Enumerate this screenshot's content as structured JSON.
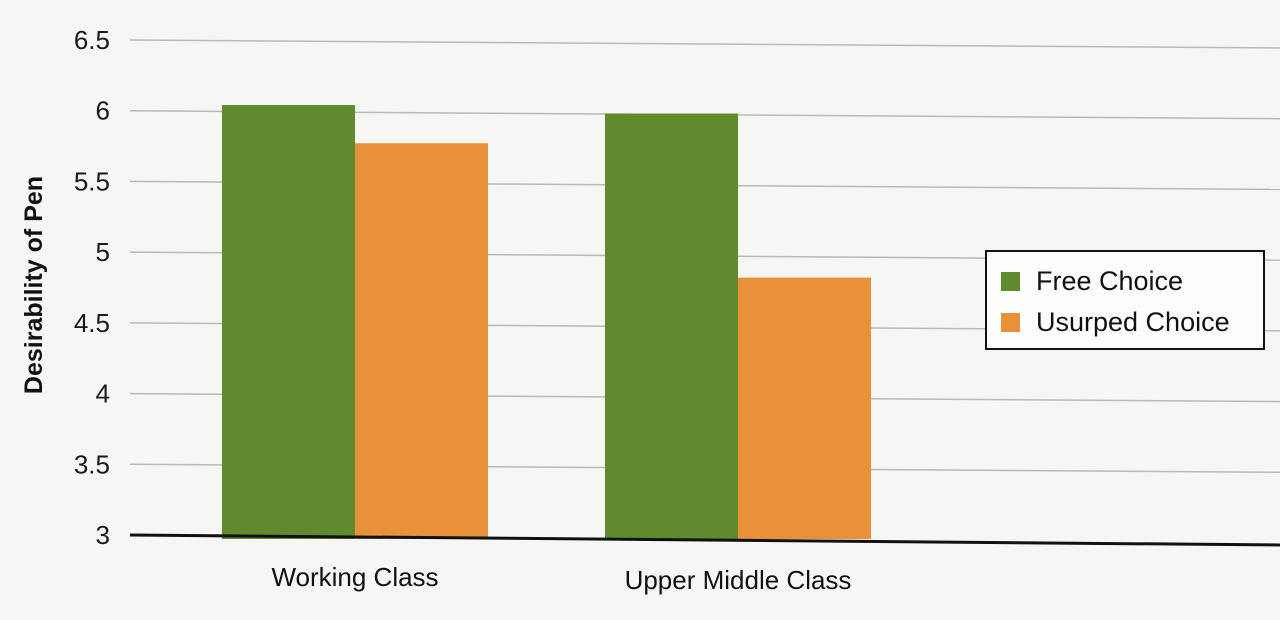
{
  "chart_data": {
    "type": "bar",
    "title": "",
    "xlabel": "",
    "ylabel": "Desirability of Pen",
    "ylim": [
      3,
      6.5
    ],
    "yticks": [
      "3",
      "3.5",
      "4",
      "4.5",
      "5",
      "5.5",
      "6",
      "6.5"
    ],
    "grid": true,
    "legend_position": "right",
    "categories": [
      "Working Class",
      "Upper Middle Class"
    ],
    "series": [
      {
        "name": "Free Choice",
        "color": "#5f8a2e",
        "values": [
          6.04,
          5.98
        ]
      },
      {
        "name": "Usurped Choice",
        "color": "#e8913a",
        "values": [
          5.77,
          4.82
        ]
      }
    ]
  },
  "legend": {
    "items": [
      {
        "label": "Free Choice",
        "color": "#5f8a2e"
      },
      {
        "label": "Usurped Choice",
        "color": "#e8913a"
      }
    ]
  }
}
